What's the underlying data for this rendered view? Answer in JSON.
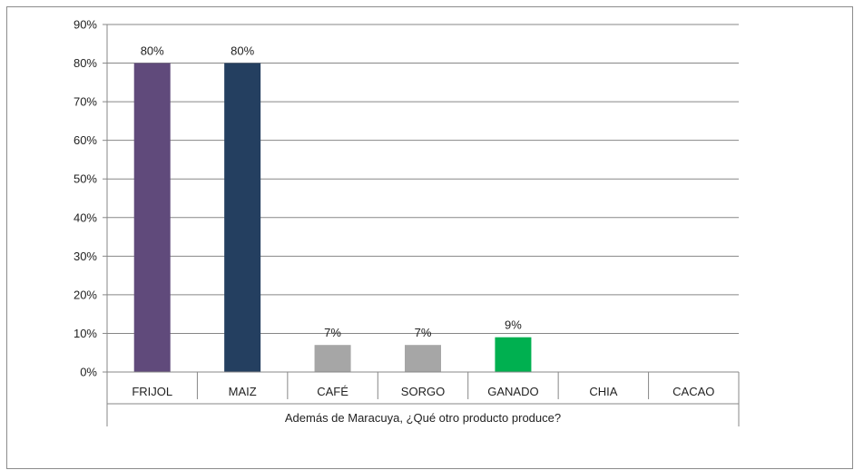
{
  "chart_data": {
    "type": "bar",
    "categories": [
      "FRIJOL",
      "MAIZ",
      "CAFÉ",
      "SORGO",
      "GANADO",
      "CHIA",
      "CACAO"
    ],
    "values": [
      80,
      80,
      7,
      7,
      9,
      0,
      0
    ],
    "data_labels": [
      "80%",
      "80%",
      "7%",
      "7%",
      "9%",
      "",
      ""
    ],
    "colors": [
      "#604a7b",
      "#243f60",
      "#a6a6a6",
      "#a6a6a6",
      "#00b050",
      "#a6a6a6",
      "#a6a6a6"
    ],
    "title": "",
    "xlabel": "Además de Maracuya, ¿Qué otro producto produce?",
    "ylabel": "",
    "ylim": [
      0,
      90
    ],
    "yticks": [
      0,
      10,
      20,
      30,
      40,
      50,
      60,
      70,
      80,
      90
    ],
    "ytick_labels": [
      "0%",
      "10%",
      "20%",
      "30%",
      "40%",
      "50%",
      "60%",
      "70%",
      "80%",
      "90%"
    ],
    "grid": true,
    "legend": "none"
  }
}
